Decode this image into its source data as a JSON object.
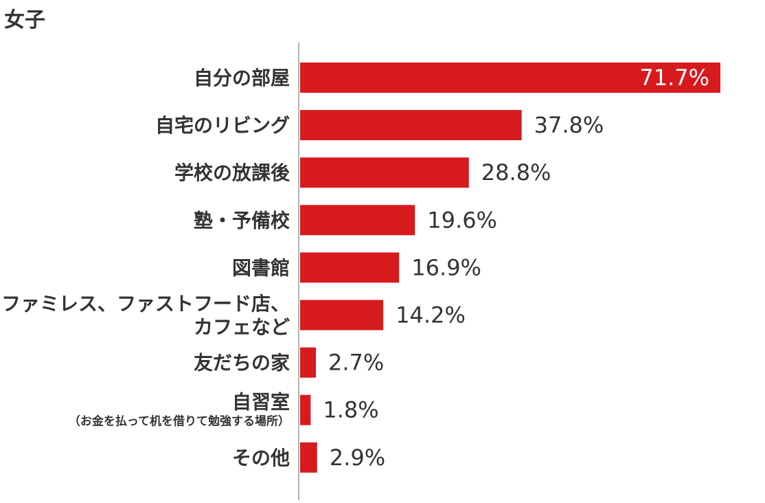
{
  "title": "女子",
  "colors": {
    "bar": "#d71a1e",
    "axis": "#b3b3b3",
    "text": "#333333"
  },
  "chart_data": {
    "type": "bar",
    "orientation": "horizontal",
    "title": "女子",
    "unit": "%",
    "xlim": [
      0,
      71.7
    ],
    "grid": false,
    "categories": [
      {
        "label": "自分の部屋",
        "sub": ""
      },
      {
        "label": "自宅のリビング",
        "sub": ""
      },
      {
        "label": "学校の放課後",
        "sub": ""
      },
      {
        "label": "塾・予備校",
        "sub": ""
      },
      {
        "label": "図書館",
        "sub": ""
      },
      {
        "label": "ファミレス、ファストフード店、カフェなど",
        "sub": ""
      },
      {
        "label": "友だちの家",
        "sub": ""
      },
      {
        "label": "自習室",
        "sub": "（お金を払って机を借りて勉強する場所）"
      },
      {
        "label": "その他",
        "sub": ""
      }
    ],
    "values": [
      71.7,
      37.8,
      28.8,
      19.6,
      16.9,
      14.2,
      2.7,
      1.8,
      2.9
    ],
    "value_labels": [
      "71.7%",
      "37.8%",
      "28.8%",
      "19.6%",
      "16.9%",
      "14.2%",
      "2.7%",
      "1.8%",
      "2.9%"
    ]
  }
}
